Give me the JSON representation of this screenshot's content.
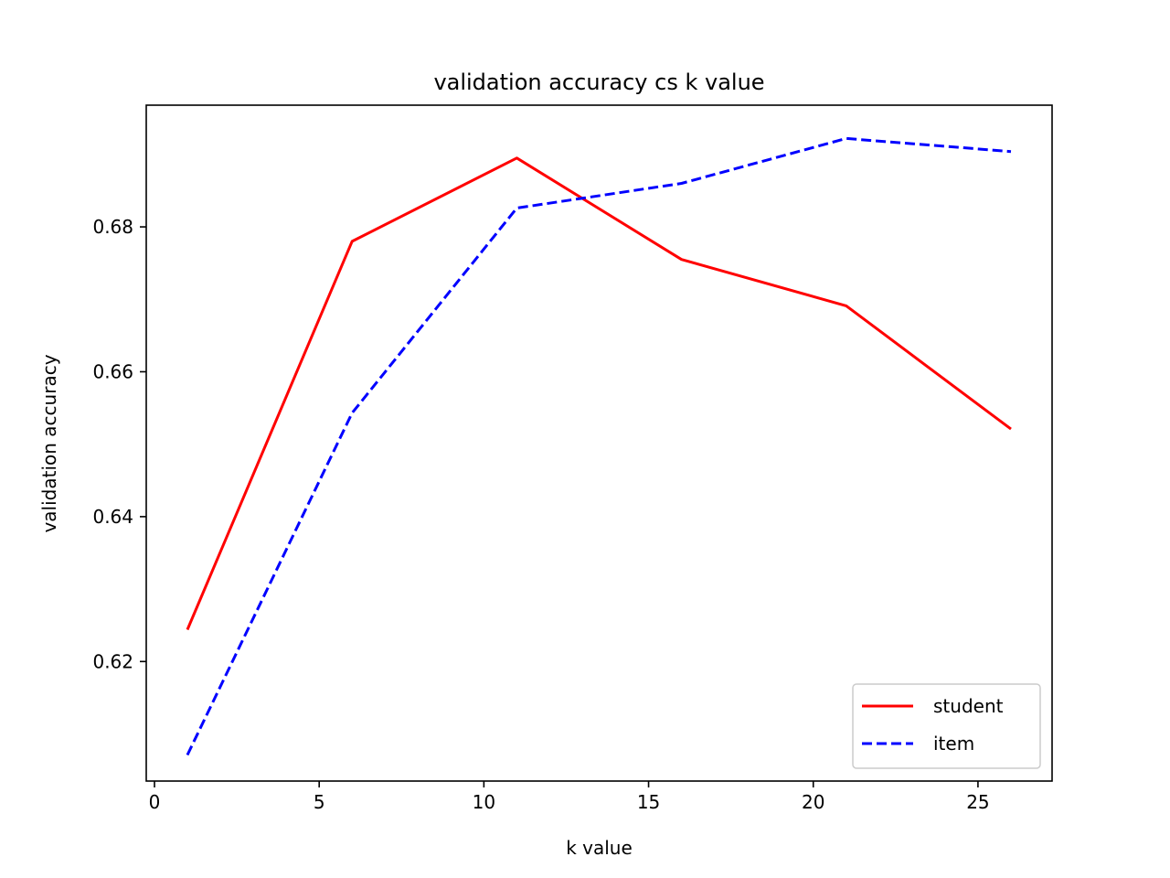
{
  "chart_data": {
    "type": "line",
    "title": "validation accuracy cs k value",
    "xlabel": "k value",
    "ylabel": "validation accuracy",
    "xlim": [
      -0.25,
      27.25
    ],
    "ylim": [
      0.6035,
      0.6968
    ],
    "xticks": [
      0,
      5,
      10,
      15,
      20,
      25
    ],
    "yticks": [
      0.62,
      0.64,
      0.66,
      0.68
    ],
    "xtick_labels": [
      "0",
      "5",
      "10",
      "15",
      "20",
      "25"
    ],
    "ytick_labels": [
      "0.62",
      "0.64",
      "0.66",
      "0.68"
    ],
    "grid": false,
    "legend_position": "lower-right",
    "x": [
      1,
      6,
      11,
      16,
      21,
      26
    ],
    "series": [
      {
        "name": "student",
        "values": [
          0.6244,
          0.678,
          0.6895,
          0.6755,
          0.6691,
          0.6521
        ],
        "color": "#ff0000",
        "style": "solid"
      },
      {
        "name": "item",
        "values": [
          0.6071,
          0.6543,
          0.6826,
          0.686,
          0.6922,
          0.6904
        ],
        "color": "#0000ff",
        "style": "dashed"
      }
    ]
  }
}
